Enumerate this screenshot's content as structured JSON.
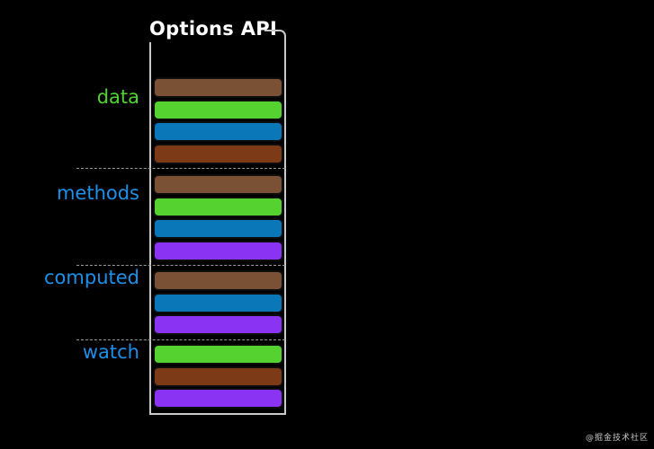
{
  "title": "Options API",
  "watermark": "@掘金技术社区",
  "colors": {
    "brown": "#7b5136",
    "green": "#55d22f",
    "blue": "#0a78b8",
    "darkbrown": "#7d3a17",
    "purple": "#8b33f2",
    "label_green": "#4fd42f",
    "label_blue": "#1e90e8",
    "box_border": "#c9c9c9",
    "title_color": "#ffffff",
    "background": "#000000"
  },
  "sections": [
    {
      "label": "data",
      "label_color": "label_green",
      "bars": [
        "brown",
        "green",
        "blue",
        "darkbrown"
      ]
    },
    {
      "label": "methods",
      "label_color": "label_blue",
      "bars": [
        "brown",
        "green",
        "blue",
        "purple"
      ]
    },
    {
      "label": "computed",
      "label_color": "label_blue",
      "bars": [
        "brown",
        "blue",
        "purple"
      ]
    },
    {
      "label": "watch",
      "label_color": "label_blue",
      "bars": [
        "green",
        "darkbrown",
        "purple"
      ]
    }
  ]
}
